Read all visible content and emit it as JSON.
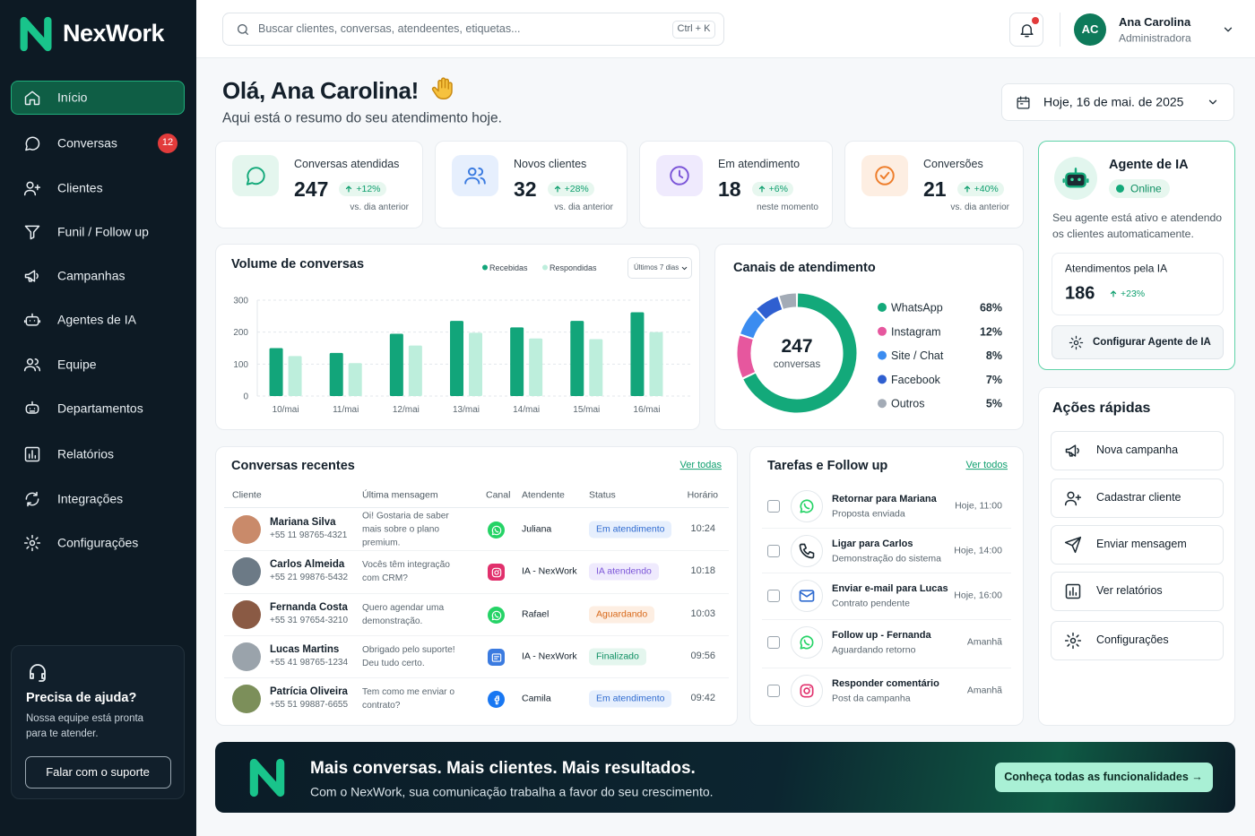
{
  "brand": "NexWork",
  "search": {
    "placeholder": "Buscar clientes, conversas, atendeentes, etiquetas...",
    "shortcut": "Ctrl + K"
  },
  "user": {
    "initials": "AC",
    "name": "Ana Carolina",
    "role": "Administradora"
  },
  "nav": [
    {
      "label": "Início"
    },
    {
      "label": "Conversas",
      "badge": 12
    },
    {
      "label": "Clientes"
    },
    {
      "label": "Funil / Follow up"
    },
    {
      "label": "Campanhas"
    },
    {
      "label": "Agentes de IA"
    },
    {
      "label": "Equipe"
    },
    {
      "label": "Departamentos"
    },
    {
      "label": "Relatórios"
    },
    {
      "label": "Integrações"
    },
    {
      "label": "Configurações"
    }
  ],
  "help": {
    "title": "Precisa de ajuda?",
    "text": "Nossa equipe está pronta para te atender.",
    "button": "Falar com o suporte"
  },
  "greeting": {
    "title": "Olá, Ana Carolina!",
    "subtitle": "Aqui está o resumo do seu atendimento hoje.",
    "date": "Hoje, 16 de mai. de 2025"
  },
  "kpis": [
    {
      "label": "Conversas atendidas",
      "value": 247,
      "change": "+12%",
      "note": "vs. dia anterior"
    },
    {
      "label": "Novos clientes",
      "value": 32,
      "change": "+28%",
      "note": "vs. dia anterior"
    },
    {
      "label": "Em atendimento",
      "value": 18,
      "change": "+6%",
      "note": "neste momento"
    },
    {
      "label": "Conversões",
      "value": 21,
      "change": "+40%",
      "note": "vs. dia anterior"
    }
  ],
  "volume_chart": {
    "type": "bar",
    "title": "Volume de conversas",
    "period": "Últimos 7 dias",
    "categories": [
      "10/mai",
      "11/mai",
      "12/mai",
      "13/mai",
      "14/mai",
      "15/mai",
      "16/mai"
    ],
    "series": [
      {
        "name": "Recebidas",
        "color": "#12a57a",
        "values": [
          150,
          135,
          195,
          235,
          215,
          235,
          262
        ]
      },
      {
        "name": "Respondidas",
        "color": "#bdeedc",
        "values": [
          125,
          103,
          158,
          198,
          180,
          178,
          200
        ]
      }
    ],
    "ylim": [
      0,
      300
    ],
    "yticks": [
      0,
      100,
      200,
      300
    ],
    "grid": true
  },
  "channels_chart": {
    "type": "donut",
    "title": "Canais de atendimento",
    "center_value": 247,
    "center_label": "conversas",
    "categories": [
      "WhatsApp",
      "Instagram",
      "Site / Chat",
      "Facebook",
      "Outros"
    ],
    "values": [
      68,
      12,
      8,
      7,
      5
    ],
    "value_labels": [
      "68%",
      "12%",
      "8%",
      "7%",
      "5%"
    ],
    "colors": [
      "#13a97a",
      "#e6579e",
      "#3b8cf0",
      "#2f5fd0",
      "#a3abb6"
    ]
  },
  "ai_agent": {
    "title": "Agente de IA",
    "status": "Online",
    "text": "Seu agente está ativo e atendendo os clientes automaticamente.",
    "metric_label": "Atendimentos pela IA",
    "metric_value": 186,
    "metric_change": "+23%",
    "button": "Configurar Agente de IA"
  },
  "recent": {
    "title": "Conversas recentes",
    "link": "Ver todas",
    "columns": [
      "Cliente",
      "Última mensagem",
      "Canal",
      "Atendente",
      "Status",
      "Horário"
    ],
    "rows": [
      {
        "name": "Mariana Silva",
        "phone": "+55 11 98765-4321",
        "message": "Oi! Gostaria de saber mais sobre o plano premium.",
        "agent": "Juliana",
        "status": "Em atendimento",
        "time": "10:24"
      },
      {
        "name": "Carlos Almeida",
        "phone": "+55 21 99876-5432",
        "message": "Vocês têm integração com CRM?",
        "agent": "IA - NexWork",
        "status": "IA atendendo",
        "time": "10:18"
      },
      {
        "name": "Fernanda Costa",
        "phone": "+55 31 97654-3210",
        "message": "Quero agendar uma demonstração.",
        "agent": "Rafael",
        "status": "Aguardando",
        "time": "10:03"
      },
      {
        "name": "Lucas Martins",
        "phone": "+55 41 98765-1234",
        "message": "Obrigado pelo suporte! Deu tudo certo.",
        "agent": "IA - NexWork",
        "status": "Finalizado",
        "time": "09:56"
      },
      {
        "name": "Patrícia Oliveira",
        "phone": "+55 51 99887-6655",
        "message": "Tem como me enviar o contrato?",
        "agent": "Camila",
        "status": "Em atendimento",
        "time": "09:42"
      }
    ]
  },
  "tasks": {
    "title": "Tarefas e Follow up",
    "link": "Ver todos",
    "items": [
      {
        "title": "Retornar para Mariana",
        "subtitle": "Proposta enviada",
        "due": "Hoje, 11:00"
      },
      {
        "title": "Ligar para Carlos",
        "subtitle": "Demonstração do sistema",
        "due": "Hoje, 14:00"
      },
      {
        "title": "Enviar e-mail para Lucas",
        "subtitle": "Contrato pendente",
        "due": "Hoje, 16:00"
      },
      {
        "title": "Follow up - Fernanda",
        "subtitle": "Aguardando retorno",
        "due": "Amanhã"
      },
      {
        "title": "Responder comentário",
        "subtitle": "Post da campanha",
        "due": "Amanhã"
      }
    ]
  },
  "quick_actions": {
    "title": "Ações rápidas",
    "items": [
      "Nova campanha",
      "Cadastrar cliente",
      "Enviar mensagem",
      "Ver relatórios",
      "Configurações"
    ]
  },
  "banner": {
    "title": "Mais conversas. Mais clientes. Mais resultados.",
    "text": "Com o NexWork, sua comunicação trabalha a favor do seu crescimento.",
    "button": "Conheça todas as funcionalidades →"
  }
}
